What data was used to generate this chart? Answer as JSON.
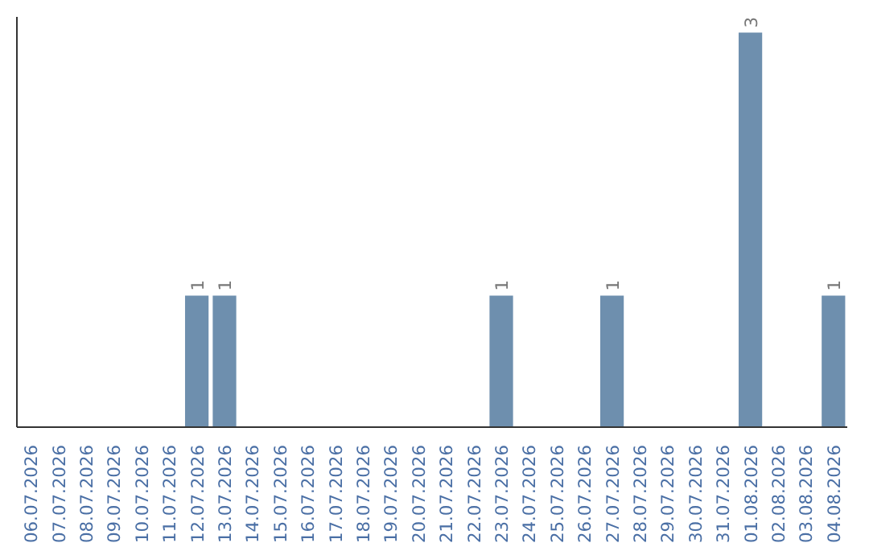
{
  "chart_data": {
    "type": "bar",
    "categories": [
      "06.07.2026",
      "07.07.2026",
      "08.07.2026",
      "09.07.2026",
      "10.07.2026",
      "11.07.2026",
      "12.07.2026",
      "13.07.2026",
      "14.07.2026",
      "15.07.2026",
      "16.07.2026",
      "17.07.2026",
      "18.07.2026",
      "19.07.2026",
      "20.07.2026",
      "21.07.2026",
      "22.07.2026",
      "23.07.2026",
      "24.07.2026",
      "25.07.2026",
      "26.07.2026",
      "27.07.2026",
      "28.07.2026",
      "29.07.2026",
      "30.07.2026",
      "31.07.2026",
      "01.08.2026",
      "02.08.2026",
      "03.08.2026",
      "04.08.2026"
    ],
    "values": [
      0,
      0,
      0,
      0,
      0,
      0,
      1,
      1,
      0,
      0,
      0,
      0,
      0,
      0,
      0,
      0,
      0,
      1,
      0,
      0,
      0,
      1,
      0,
      0,
      0,
      0,
      3,
      0,
      0,
      1
    ],
    "value_labels": [
      null,
      null,
      null,
      null,
      null,
      null,
      "1",
      "1",
      null,
      null,
      null,
      null,
      null,
      null,
      null,
      null,
      null,
      "1",
      null,
      null,
      null,
      "1",
      null,
      null,
      null,
      null,
      "3",
      null,
      null,
      "1"
    ],
    "color": "#6e8fae",
    "grid": false
  }
}
